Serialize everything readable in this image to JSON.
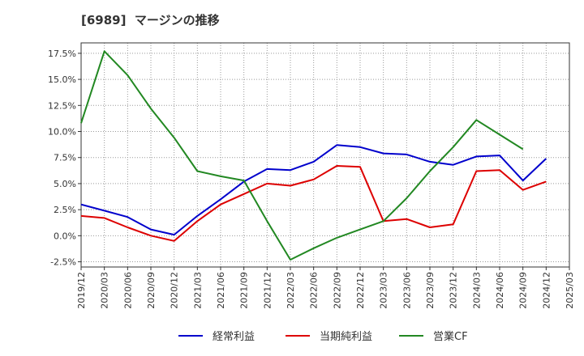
{
  "title": "[6989]  マージンの推移",
  "chart_data": {
    "type": "line",
    "x": [
      "2019/12",
      "2020/03",
      "2020/06",
      "2020/09",
      "2020/12",
      "2021/03",
      "2021/06",
      "2021/09",
      "2021/12",
      "2022/03",
      "2022/06",
      "2022/09",
      "2022/12",
      "2023/03",
      "2023/06",
      "2023/09",
      "2023/12",
      "2024/03",
      "2024/06",
      "2024/09",
      "2024/12",
      "2025/03"
    ],
    "ylim": [
      -3.0,
      18.5
    ],
    "yticks": [
      -2.5,
      0.0,
      2.5,
      5.0,
      7.5,
      10.0,
      12.5,
      15.0,
      17.5
    ],
    "ytick_labels": [
      "-2.5%",
      "0.0%",
      "2.5%",
      "5.0%",
      "7.5%",
      "10.0%",
      "12.5%",
      "15.0%",
      "17.5%"
    ],
    "grid": true,
    "legend_position": "bottom",
    "series": [
      {
        "name": "経常利益",
        "color": "#0000cc",
        "values": [
          3.0,
          2.4,
          1.8,
          0.6,
          0.1,
          1.9,
          3.5,
          5.2,
          6.4,
          6.3,
          7.1,
          8.7,
          8.5,
          7.9,
          7.8,
          7.1,
          6.8,
          7.6,
          7.7,
          5.3,
          7.4,
          null
        ]
      },
      {
        "name": "当期純利益",
        "color": "#dd0000",
        "values": [
          1.9,
          1.7,
          0.8,
          0.0,
          -0.5,
          1.4,
          3.0,
          4.0,
          5.0,
          4.8,
          5.4,
          6.7,
          6.6,
          1.4,
          1.6,
          0.8,
          1.1,
          6.2,
          6.3,
          4.4,
          5.2,
          null
        ]
      },
      {
        "name": "営業CF",
        "color": "#228822",
        "values": [
          10.8,
          17.7,
          15.4,
          12.2,
          9.4,
          6.2,
          5.7,
          5.3,
          1.4,
          -2.3,
          -1.2,
          -0.2,
          0.6,
          1.4,
          3.6,
          6.2,
          8.5,
          11.1,
          9.7,
          8.3,
          null,
          null
        ]
      }
    ]
  }
}
